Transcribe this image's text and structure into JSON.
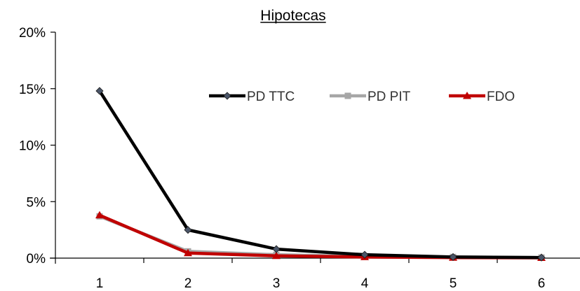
{
  "chart_data": {
    "type": "line",
    "title": "Hipotecas",
    "xlabel": "",
    "ylabel": "",
    "categories": [
      "1",
      "2",
      "3",
      "4",
      "5",
      "6"
    ],
    "y_ticks": [
      "0%",
      "5%",
      "10%",
      "15%",
      "20%"
    ],
    "ylim": [
      0,
      20
    ],
    "grid": false,
    "legend_position": "top-right",
    "series": [
      {
        "name": "PD TTC",
        "values": [
          14.8,
          2.5,
          0.8,
          0.3,
          0.1,
          0.05
        ],
        "color": "#000000",
        "marker": "diamond",
        "marker_color": "#4a5568"
      },
      {
        "name": "PD PIT",
        "values": [
          3.7,
          0.6,
          0.3,
          0.15,
          0.1,
          0.05
        ],
        "color": "#a6a6a6",
        "marker": "square",
        "marker_color": "#a6a6a6"
      },
      {
        "name": "FDO",
        "values": [
          3.8,
          0.45,
          0.2,
          0.1,
          0.05,
          0.03
        ],
        "color": "#c00000",
        "marker": "triangle",
        "marker_color": "#c00000"
      }
    ]
  }
}
